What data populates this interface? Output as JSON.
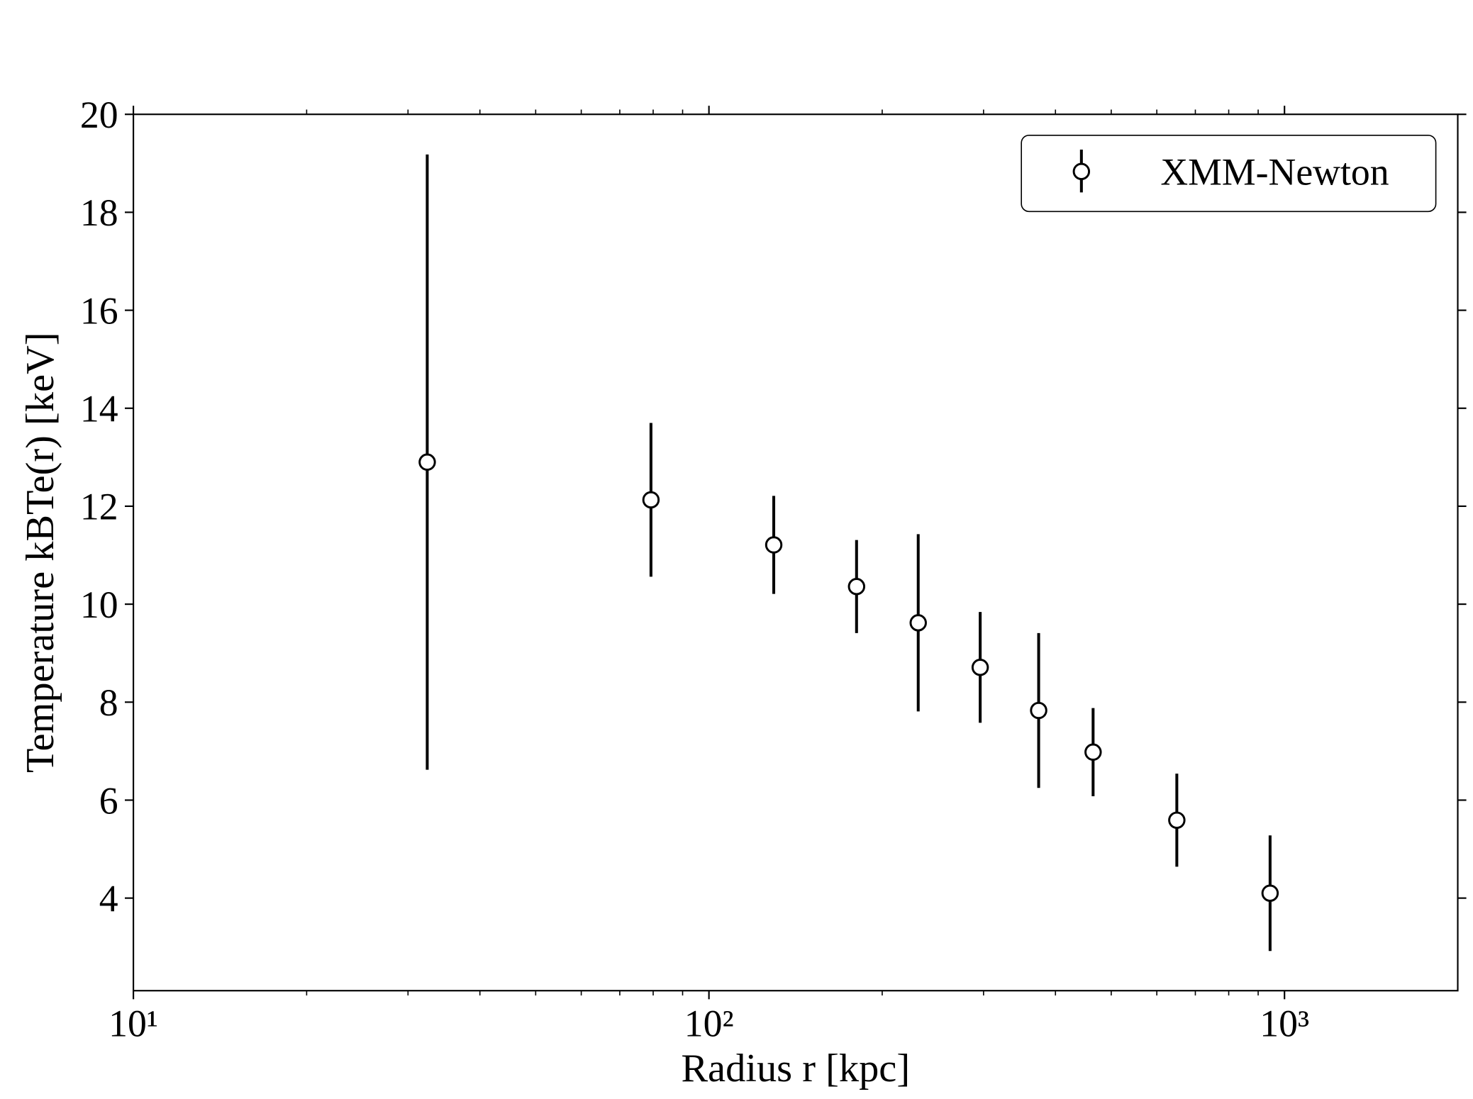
{
  "chart_data": {
    "type": "errorbar",
    "xlabel": "Radius r [kpc]",
    "ylabel": "Temperature kBTe(r) [keV]",
    "x_log": true,
    "xlim": [
      10,
      2000
    ],
    "ylim": [
      2.11,
      20
    ],
    "xticks": [
      {
        "value": 10,
        "label": "10¹"
      },
      {
        "value": 100,
        "label": "10²"
      },
      {
        "value": 1000,
        "label": "10³"
      }
    ],
    "xminorticks": [
      20,
      30,
      40,
      50,
      60,
      70,
      80,
      90,
      200,
      300,
      400,
      500,
      600,
      700,
      800,
      900
    ],
    "yticks": [
      4,
      6,
      8,
      10,
      12,
      14,
      16,
      18,
      20
    ],
    "legend": "upper right",
    "series": [
      {
        "name": "XMM-Newton",
        "color": "#000000",
        "x": [
          32.4,
          79.3,
          129.6,
          180.5,
          231,
          296,
          374,
          465,
          650,
          944
        ],
        "values": [
          12.9,
          12.13,
          11.21,
          10.36,
          9.62,
          8.71,
          7.83,
          6.98,
          5.59,
          4.1
        ],
        "errors": [
          6.28,
          1.57,
          1.0,
          0.95,
          1.81,
          1.13,
          1.58,
          0.9,
          0.95,
          1.18
        ]
      }
    ]
  }
}
